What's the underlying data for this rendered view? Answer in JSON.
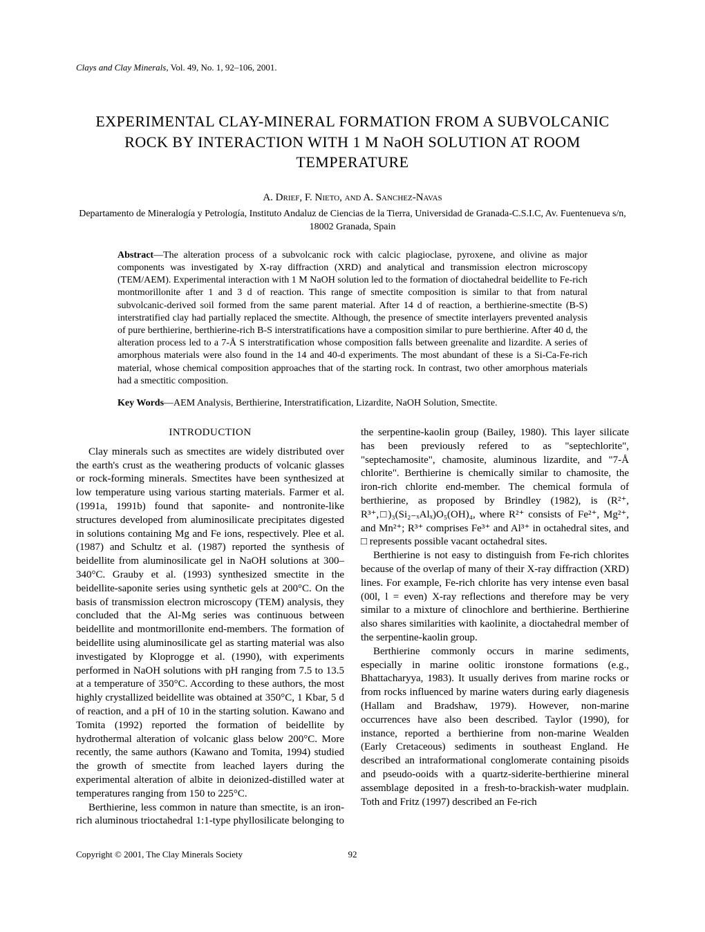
{
  "journal": {
    "name": "Clays and Clay Minerals,",
    "vol": " Vol. 49, No. 1, 92–106, 2001."
  },
  "title": "EXPERIMENTAL CLAY-MINERAL FORMATION FROM A SUBVOLCANIC ROCK BY INTERACTION WITH 1 M NaOH SOLUTION AT ROOM TEMPERATURE",
  "authors": "A. Drief, F. Nieto, and A. Sanchez-Navas",
  "affiliation": "Departamento de Mineralogía y Petrología, Instituto Andaluz de Ciencias de la Tierra, Universidad de Granada-C.S.I.C, Av. Fuentenueva s/n, 18002 Granada, Spain",
  "abstract_label": "Abstract",
  "abstract_text": "—The alteration process of a subvolcanic rock with calcic plagioclase, pyroxene, and olivine as major components was investigated by X-ray diffraction (XRD) and analytical and transmission electron microscopy (TEM/AEM). Experimental interaction with 1 M NaOH solution led to the formation of dioctahedral beidellite to Fe-rich montmorillonite after 1 and 3 d of reaction. This range of smectite composition is similar to that from natural subvolcanic-derived soil formed from the same parent material. After 14 d of reaction, a berthierine-smectite (B-S) interstratified clay had partially replaced the smectite. Although, the presence of smectite interlayers prevented analysis of pure berthierine, berthierine-rich B-S interstratifications have a composition similar to pure berthierine. After 40 d, the alteration process led to a 7-Å S interstratification whose composition falls between greenalite and lizardite. A series of amorphous materials were also found in the 14 and 40-d experiments. The most abundant of these is a Si-Ca-Fe-rich material, whose chemical composition approaches that of the starting rock. In contrast, two other amorphous materials had a smectitic composition.",
  "keywords_label": "Key Words",
  "keywords_text": "—AEM Analysis, Berthierine, Interstratification, Lizardite, NaOH Solution, Smectite.",
  "section_intro": "INTRODUCTION",
  "para1": "Clay minerals such as smectites are widely distributed over the earth's crust as the weathering products of volcanic glasses or rock-forming minerals. Smectites have been synthesized at low temperature using various starting materials. Farmer et al. (1991a, 1991b) found that saponite- and nontronite-like structures developed from aluminosilicate precipitates digested in solutions containing Mg and Fe ions, respectively. Plee et al. (1987) and Schultz et al. (1987) reported the synthesis of beidellite from aluminosilicate gel in NaOH solutions at 300–340°C. Grauby et al. (1993) synthesized smectite in the beidellite-saponite series using synthetic gels at 200°C. On the basis of transmission electron microscopy (TEM) analysis, they concluded that the Al-Mg series was continuous between beidellite and montmorillonite end-members. The formation of beidellite using aluminosilicate gel as starting material was also investigated by Kloprogge et al. (1990), with experiments performed in NaOH solutions with pH ranging from 7.5 to 13.5 at a temperature of 350°C. According to these authors, the most highly crystallized beidellite was obtained at 350°C, 1 Kbar, 5 d of reaction, and a pH of 10 in the starting solution. Kawano and Tomita (1992) reported the formation of beidellite by hydrothermal alteration of volcanic glass below 200°C. More recently, the same authors (Kawano and Tomita, 1994) studied the growth of smectite from leached layers during the experimental alteration of albite in deionized-distilled water at temperatures ranging from 150 to 225°C.",
  "para2": "Berthierine, less common in nature than smectite, is an iron-rich aluminous trioctahedral 1:1-type phyllosilicate belonging to the serpentine-kaolin group (Bailey, 1980). This layer silicate has been previously refered to as \"septechlorite\", \"septechamosite\", chamosite, aluminous lizardite, and \"7-Å chlorite\". Berthierine is chemically similar to chamosite, the iron-rich chlorite end-member. The chemical formula of berthierine, as proposed by Brindley (1982), is (R²⁺, R³⁺,□)₃(Si₂₋ₓAlₓ)O₅(OH)₄, where R²⁺ consists of Fe²⁺, Mg²⁺, and Mn²⁺; R³⁺ comprises Fe³⁺ and Al³⁺ in octahedral sites, and □ represents possible vacant octahedral sites.",
  "para3": "Berthierine is not easy to distinguish from Fe-rich chlorites because of the overlap of many of their X-ray diffraction (XRD) lines. For example, Fe-rich chlorite has very intense even basal (00l, l = even) X-ray reflections and therefore may be very similar to a mixture of clinochlore and berthierine. Berthierine also shares similarities with kaolinite, a dioctahedral member of the serpentine-kaolin group.",
  "para4": "Berthierine commonly occurs in marine sediments, especially in marine oolitic ironstone formations (e.g., Bhattacharyya, 1983). It usually derives from marine rocks or from rocks influenced by marine waters during early diagenesis (Hallam and Bradshaw, 1979). However, non-marine occurrences have also been described. Taylor (1990), for instance, reported a berthierine from non-marine Wealden (Early Cretaceous) sediments in southeast England. He described an intraformational conglomerate containing pisoids and pseudo-ooids with a quartz-siderite-berthierine mineral assemblage deposited in a fresh-to-brackish-water mudplain. Toth and Fritz (1997) described an Fe-rich",
  "copyright": "Copyright © 2001, The Clay Minerals Society",
  "pagenum": "92"
}
